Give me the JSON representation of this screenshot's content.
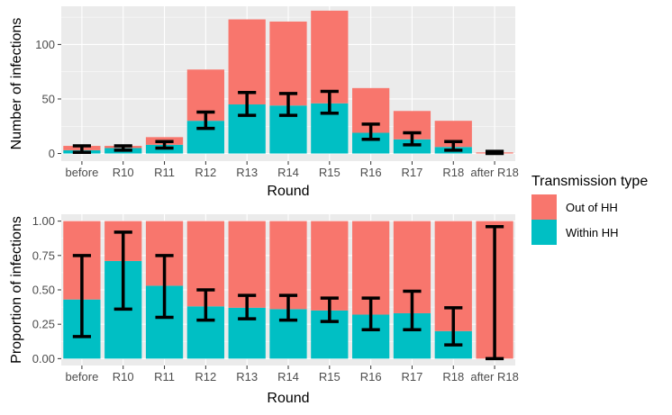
{
  "colors": {
    "out_of_hh": "#f8766d",
    "within_hh": "#00bfc4",
    "errorbar": "#000000"
  },
  "legend": {
    "title": "Transmission type",
    "items": [
      {
        "label": "Out of HH",
        "color": "#f8766d"
      },
      {
        "label": "Within HH",
        "color": "#00bfc4"
      }
    ]
  },
  "chart_data": [
    {
      "type": "bar",
      "stacked": true,
      "title": "",
      "xlabel": "Round",
      "ylabel": "Number of infections",
      "ylim": [
        0,
        135
      ],
      "yticks": [
        0,
        50,
        100
      ],
      "categories": [
        "before",
        "R10",
        "R11",
        "R12",
        "R13",
        "R14",
        "R15",
        "R16",
        "R17",
        "R18",
        "after R18"
      ],
      "series": [
        {
          "name": "Within HH",
          "values": [
            3,
            5,
            8,
            30,
            45,
            44,
            46,
            19,
            13,
            6,
            0
          ]
        },
        {
          "name": "Out of HH",
          "values": [
            4,
            2,
            7,
            47,
            78,
            77,
            85,
            41,
            26,
            24,
            1
          ]
        }
      ],
      "errorbars": [
        [
          1,
          7
        ],
        [
          3,
          7
        ],
        [
          5,
          11
        ],
        [
          23,
          38
        ],
        [
          35,
          56
        ],
        [
          35,
          55
        ],
        [
          37,
          57
        ],
        [
          13,
          27
        ],
        [
          8,
          19
        ],
        [
          3,
          11
        ],
        [
          0,
          2
        ]
      ],
      "legend_position": "right"
    },
    {
      "type": "bar",
      "stacked": true,
      "title": "",
      "xlabel": "Round",
      "ylabel": "Proportion of infections",
      "ylim": [
        0,
        1
      ],
      "yticks": [
        "0.00",
        "0.25",
        "0.50",
        "0.75",
        "1.00"
      ],
      "categories": [
        "before",
        "R10",
        "R11",
        "R12",
        "R13",
        "R14",
        "R15",
        "R16",
        "R17",
        "R18",
        "after R18"
      ],
      "series": [
        {
          "name": "Within HH",
          "values": [
            0.43,
            0.71,
            0.53,
            0.38,
            0.37,
            0.36,
            0.35,
            0.32,
            0.33,
            0.2,
            0.0
          ]
        },
        {
          "name": "Out of HH",
          "values": [
            0.57,
            0.29,
            0.47,
            0.62,
            0.63,
            0.64,
            0.65,
            0.68,
            0.67,
            0.8,
            1.0
          ]
        }
      ],
      "errorbars": [
        [
          0.16,
          0.75
        ],
        [
          0.36,
          0.92
        ],
        [
          0.3,
          0.75
        ],
        [
          0.28,
          0.5
        ],
        [
          0.29,
          0.46
        ],
        [
          0.28,
          0.46
        ],
        [
          0.27,
          0.44
        ],
        [
          0.21,
          0.44
        ],
        [
          0.21,
          0.49
        ],
        [
          0.1,
          0.37
        ],
        [
          0.0,
          0.96
        ]
      ],
      "legend_position": "right"
    }
  ]
}
